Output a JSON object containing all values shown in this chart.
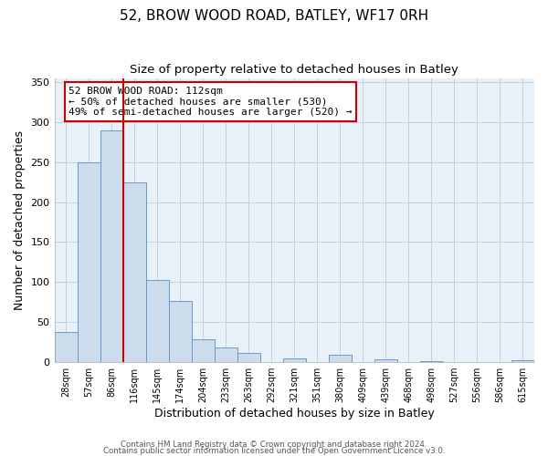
{
  "title": "52, BROW WOOD ROAD, BATLEY, WF17 0RH",
  "subtitle": "Size of property relative to detached houses in Batley",
  "xlabel": "Distribution of detached houses by size in Batley",
  "ylabel": "Number of detached properties",
  "bin_labels": [
    "28sqm",
    "57sqm",
    "86sqm",
    "116sqm",
    "145sqm",
    "174sqm",
    "204sqm",
    "233sqm",
    "263sqm",
    "292sqm",
    "321sqm",
    "351sqm",
    "380sqm",
    "409sqm",
    "439sqm",
    "468sqm",
    "498sqm",
    "527sqm",
    "556sqm",
    "586sqm",
    "615sqm"
  ],
  "bar_heights": [
    38,
    250,
    290,
    225,
    103,
    77,
    29,
    18,
    11,
    0,
    5,
    0,
    9,
    0,
    3,
    0,
    1,
    0,
    0,
    0,
    2
  ],
  "bar_color": "#ccdcec",
  "bar_edge_color": "#6699cc",
  "vline_x": 2.5,
  "vline_color": "#cc0000",
  "annotation_text": "52 BROW WOOD ROAD: 112sqm\n← 50% of detached houses are smaller (530)\n49% of semi-detached houses are larger (520) →",
  "annotation_box_color": "#ffffff",
  "annotation_box_edge": "#cc0000",
  "ylim": [
    0,
    355
  ],
  "yticks": [
    0,
    50,
    100,
    150,
    200,
    250,
    300,
    350
  ],
  "footer1": "Contains HM Land Registry data © Crown copyright and database right 2024.",
  "footer2": "Contains public sector information licensed under the Open Government Licence v3.0.",
  "title_fontsize": 11,
  "subtitle_fontsize": 9.5,
  "bg_color": "#ffffff",
  "plot_bg_color": "#e8f0f8"
}
